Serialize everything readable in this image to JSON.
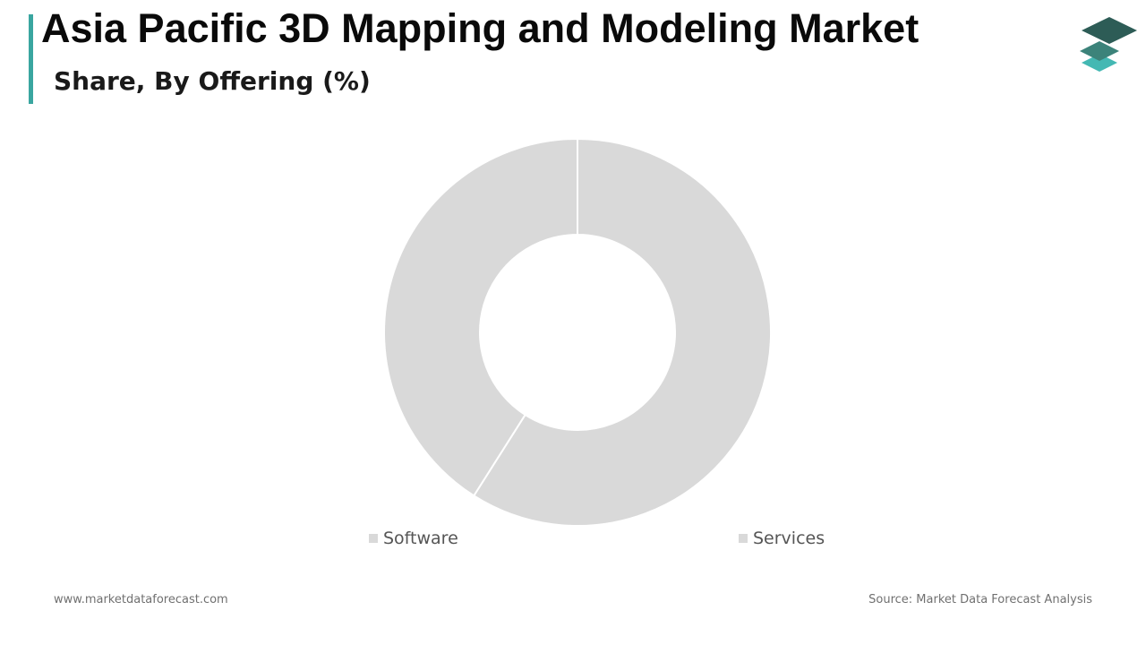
{
  "header": {
    "title": "Asia Pacific 3D Mapping and Modeling Market",
    "subtitle": "Share, By Offering (%)"
  },
  "logo": {
    "icon": "stacked-layers-icon",
    "colors": [
      "#2d5c56",
      "#3c837a",
      "#44b8b3"
    ]
  },
  "colors": {
    "accent": "#3aa6a0",
    "slice_fill": "#d9d9d9",
    "slice_border": "#ffffff"
  },
  "chart_data": {
    "type": "pie",
    "variant": "donut",
    "categories": [
      "Services",
      "Software"
    ],
    "values": [
      59,
      41
    ],
    "unit": "%",
    "legend_position": "bottom",
    "legend_order": [
      "Software",
      "Services"
    ]
  },
  "legend": {
    "software_label": "Software",
    "services_label": "Services"
  },
  "footer": {
    "website": "www.marketdataforecast.com",
    "source": "Source: Market Data Forecast Analysis"
  }
}
